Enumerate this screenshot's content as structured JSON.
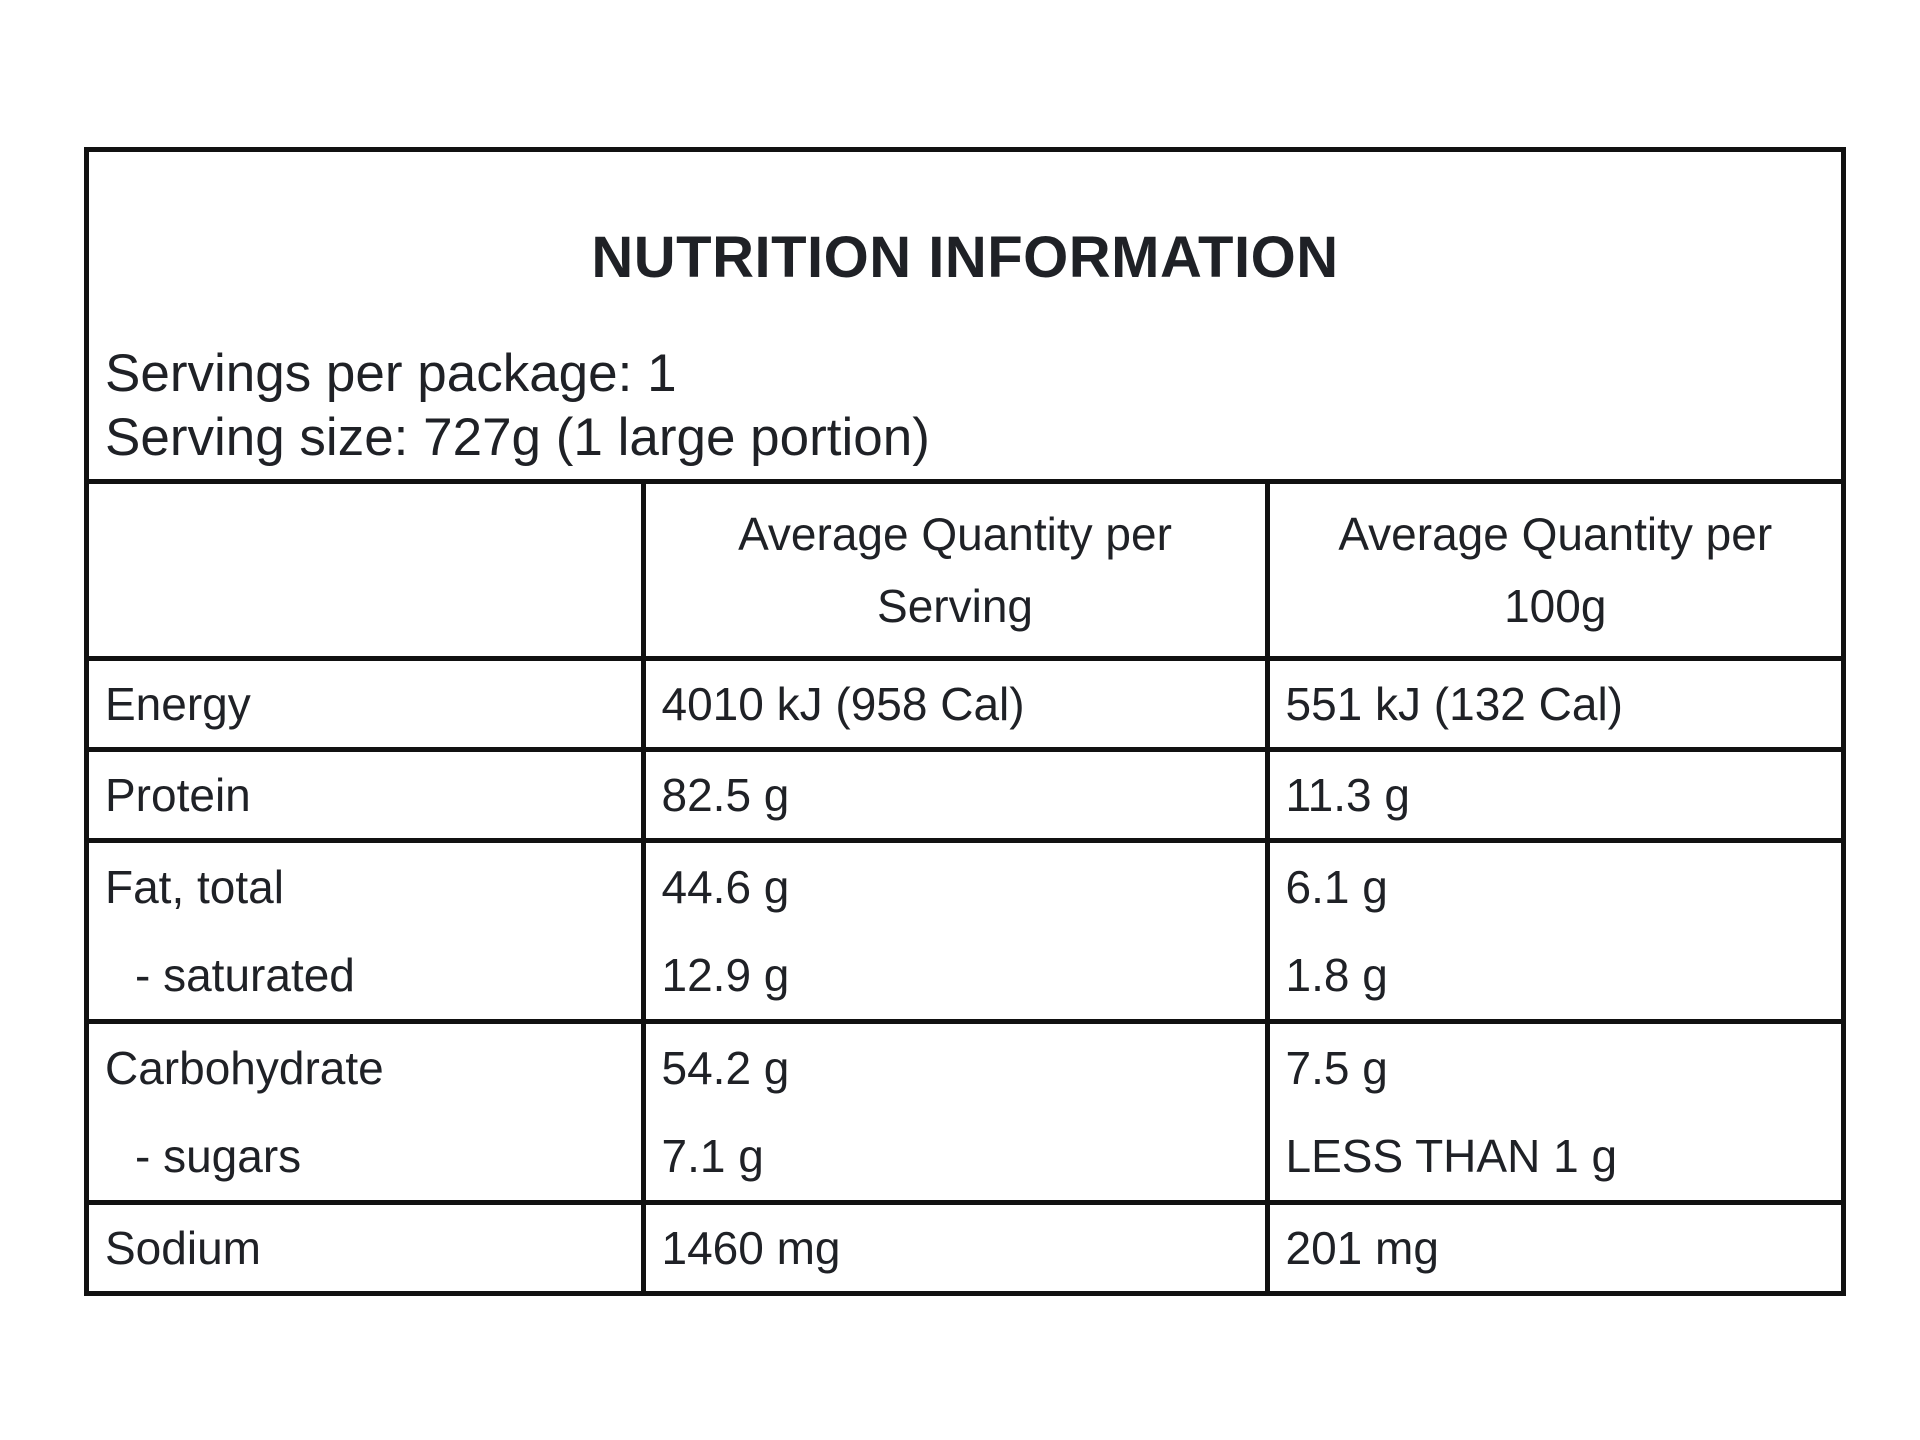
{
  "label": {
    "title": "NUTRITION INFORMATION",
    "servings_per_package": "Servings per package: 1",
    "serving_size": "Serving size: 727g (1 large portion)"
  },
  "table": {
    "headers": [
      "",
      "Average Quantity per Serving",
      "Average Quantity per 100g"
    ],
    "rows": [
      {
        "name": "Energy",
        "per_serving": "4010 kJ (958 Cal)",
        "per_100g": "551 kJ (132 Cal)"
      },
      {
        "name": "Protein",
        "per_serving": "82.5 g",
        "per_100g": "11.3 g"
      },
      {
        "name": "Fat, total",
        "per_serving": "44.6 g",
        "per_100g": "6.1 g",
        "sub": {
          "name": "- saturated",
          "per_serving": "12.9 g",
          "per_100g": "1.8 g"
        }
      },
      {
        "name": "Carbohydrate",
        "per_serving": "54.2 g",
        "per_100g": "7.5 g",
        "sub": {
          "name": "- sugars",
          "per_serving": "7.1 g",
          "per_100g": "LESS THAN 1 g"
        }
      },
      {
        "name": "Sodium",
        "per_serving": "1460 mg",
        "per_100g": "201 mg"
      }
    ]
  }
}
